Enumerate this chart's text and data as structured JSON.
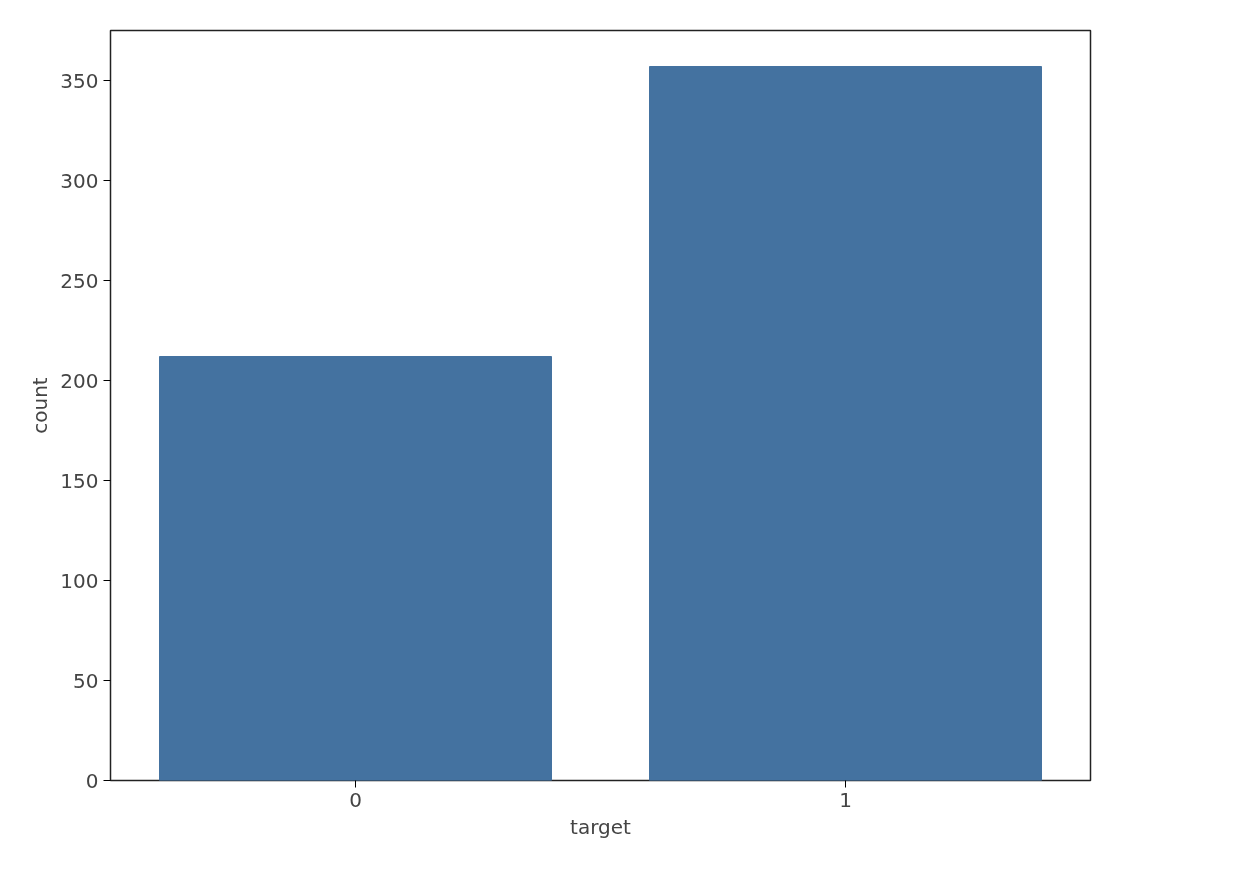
{
  "chart_data": {
    "type": "bar",
    "xlabel": "target",
    "ylabel": "count",
    "categories": [
      "0",
      "1"
    ],
    "values": [
      212,
      357
    ],
    "color": "#4472a0",
    "ylim": [
      0,
      375
    ],
    "yticks": [
      0,
      50,
      100,
      150,
      200,
      250,
      300,
      350
    ],
    "grid": false
  }
}
